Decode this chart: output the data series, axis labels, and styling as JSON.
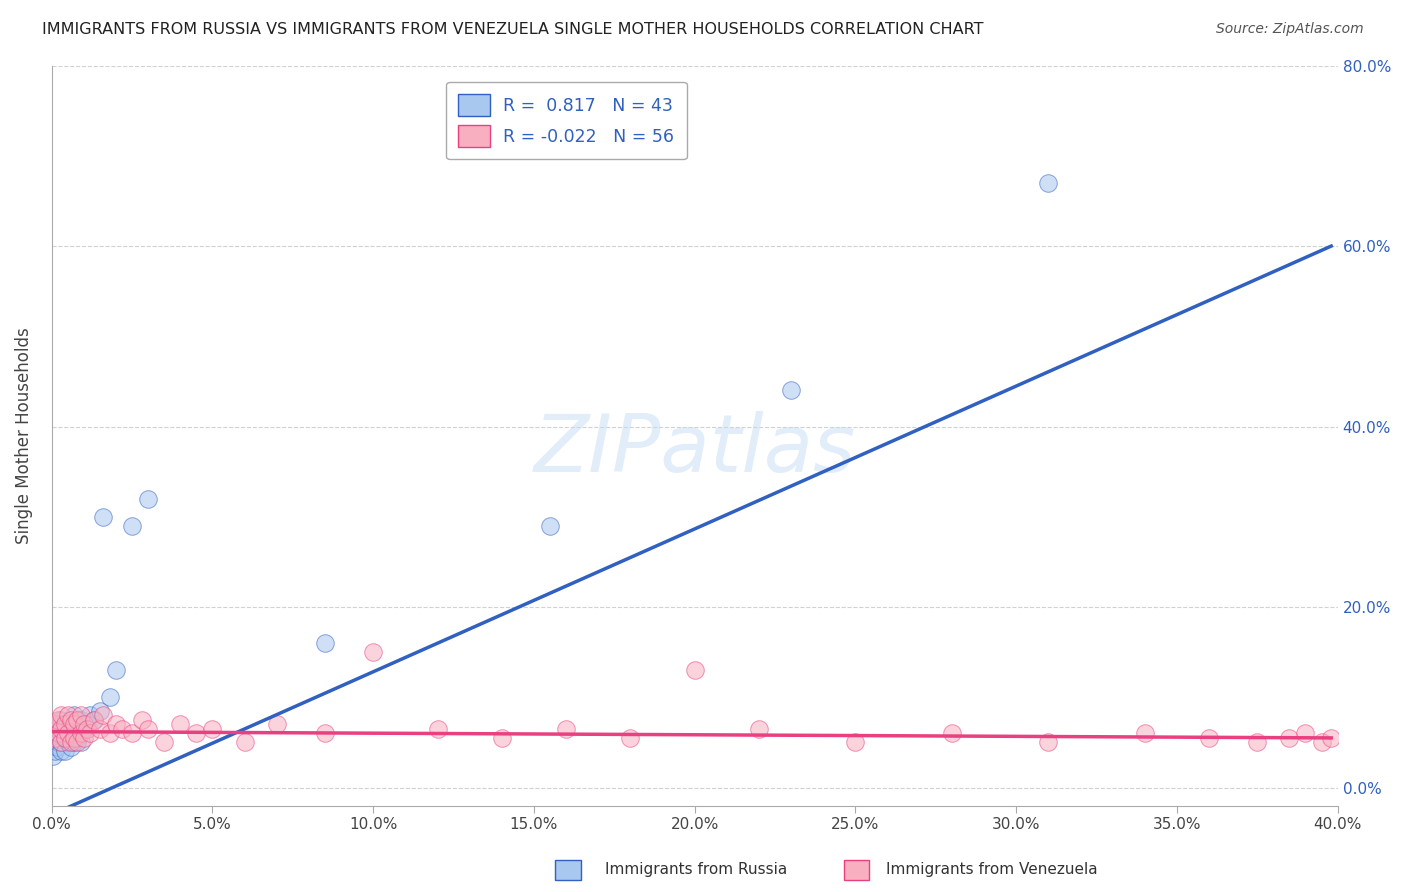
{
  "title": "IMMIGRANTS FROM RUSSIA VS IMMIGRANTS FROM VENEZUELA SINGLE MOTHER HOUSEHOLDS CORRELATION CHART",
  "source": "Source: ZipAtlas.com",
  "xlabel": "",
  "ylabel": "Single Mother Households",
  "watermark": "ZIPatlas",
  "legend_blue_r": "0.817",
  "legend_blue_n": "43",
  "legend_pink_r": "-0.022",
  "legend_pink_n": "56",
  "blue_color": "#a8c8f0",
  "pink_color": "#f8b0c0",
  "blue_line_color": "#3060c0",
  "pink_line_color": "#e84080",
  "xlim": [
    0.0,
    0.4
  ],
  "ylim": [
    -0.02,
    0.8
  ],
  "xticks": [
    0.0,
    0.05,
    0.1,
    0.15,
    0.2,
    0.25,
    0.3,
    0.35,
    0.4
  ],
  "yticks": [
    0.0,
    0.2,
    0.4,
    0.6,
    0.8
  ],
  "blue_scatter_x": [
    0.0005,
    0.001,
    0.001,
    0.0015,
    0.002,
    0.002,
    0.002,
    0.0025,
    0.003,
    0.003,
    0.003,
    0.003,
    0.003,
    0.004,
    0.004,
    0.004,
    0.004,
    0.005,
    0.005,
    0.005,
    0.006,
    0.006,
    0.007,
    0.007,
    0.007,
    0.008,
    0.008,
    0.009,
    0.009,
    0.01,
    0.011,
    0.012,
    0.013,
    0.015,
    0.016,
    0.018,
    0.02,
    0.025,
    0.03,
    0.085,
    0.155,
    0.23,
    0.31
  ],
  "blue_scatter_y": [
    0.035,
    0.04,
    0.055,
    0.045,
    0.05,
    0.06,
    0.065,
    0.055,
    0.04,
    0.05,
    0.06,
    0.07,
    0.075,
    0.04,
    0.055,
    0.065,
    0.07,
    0.05,
    0.06,
    0.07,
    0.045,
    0.07,
    0.05,
    0.06,
    0.08,
    0.055,
    0.075,
    0.05,
    0.075,
    0.065,
    0.07,
    0.08,
    0.075,
    0.085,
    0.3,
    0.1,
    0.13,
    0.29,
    0.32,
    0.16,
    0.29,
    0.44,
    0.67
  ],
  "pink_scatter_x": [
    0.001,
    0.001,
    0.002,
    0.002,
    0.003,
    0.003,
    0.003,
    0.004,
    0.004,
    0.005,
    0.005,
    0.006,
    0.006,
    0.007,
    0.007,
    0.008,
    0.008,
    0.009,
    0.009,
    0.01,
    0.01,
    0.011,
    0.012,
    0.013,
    0.015,
    0.016,
    0.018,
    0.02,
    0.022,
    0.025,
    0.028,
    0.03,
    0.035,
    0.04,
    0.045,
    0.05,
    0.06,
    0.07,
    0.085,
    0.1,
    0.12,
    0.14,
    0.16,
    0.18,
    0.2,
    0.22,
    0.25,
    0.28,
    0.31,
    0.34,
    0.36,
    0.375,
    0.385,
    0.39,
    0.395,
    0.398
  ],
  "pink_scatter_y": [
    0.055,
    0.07,
    0.06,
    0.075,
    0.05,
    0.065,
    0.08,
    0.055,
    0.07,
    0.06,
    0.08,
    0.05,
    0.075,
    0.055,
    0.07,
    0.05,
    0.075,
    0.06,
    0.08,
    0.055,
    0.07,
    0.065,
    0.06,
    0.075,
    0.065,
    0.08,
    0.06,
    0.07,
    0.065,
    0.06,
    0.075,
    0.065,
    0.05,
    0.07,
    0.06,
    0.065,
    0.05,
    0.07,
    0.06,
    0.15,
    0.065,
    0.055,
    0.065,
    0.055,
    0.13,
    0.065,
    0.05,
    0.06,
    0.05,
    0.06,
    0.055,
    0.05,
    0.055,
    0.06,
    0.05,
    0.055
  ],
  "blue_line_x": [
    0.0,
    0.398
  ],
  "blue_line_y": [
    -0.03,
    0.6
  ],
  "pink_line_x": [
    0.0,
    0.398
  ],
  "pink_line_y": [
    0.062,
    0.055
  ],
  "figsize": [
    14.06,
    8.92
  ],
  "dpi": 100
}
